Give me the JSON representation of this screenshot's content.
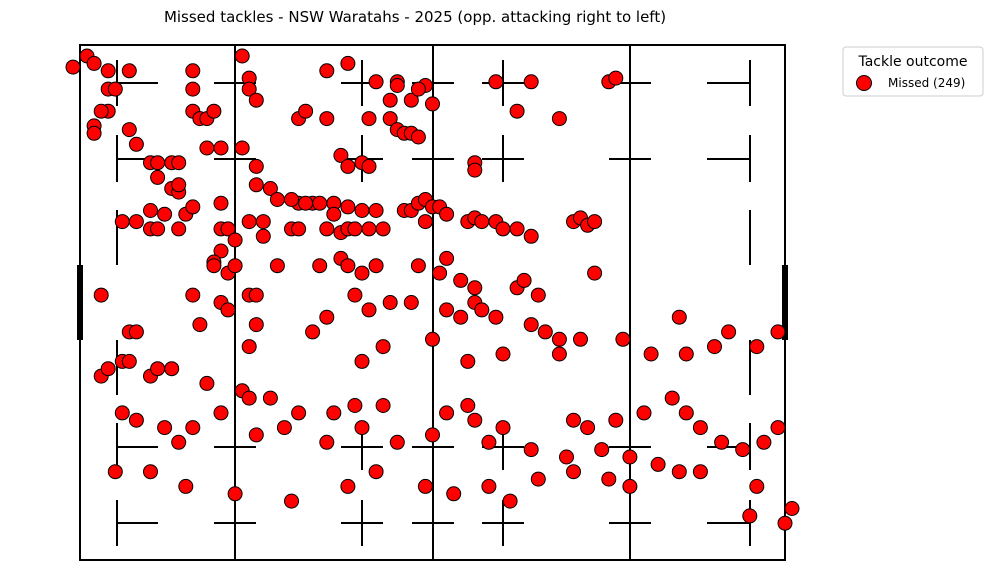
{
  "chart_data": {
    "type": "scatter",
    "title": "Missed tackles - NSW Waratahs - 2025  (opp. attacking right to left)",
    "xlim": [
      0,
      100
    ],
    "ylim": [
      0,
      70
    ],
    "grid": false,
    "legend": {
      "title": "Tackle outcome",
      "placement": "outside-top-right",
      "entries": [
        {
          "label": "Missed (249)"
        }
      ]
    },
    "series": [
      {
        "name": "Missed (249)",
        "color": "#ff0000",
        "edge_color": "#000000",
        "points": [
          [
            -1,
            67
          ],
          [
            1,
            68.5
          ],
          [
            2,
            67.5
          ],
          [
            4,
            66.5
          ],
          [
            7,
            66.5
          ],
          [
            16,
            66.5
          ],
          [
            23,
            68.5
          ],
          [
            24,
            65.5
          ],
          [
            35,
            66.5
          ],
          [
            38,
            67.5
          ],
          [
            42,
            65
          ],
          [
            45,
            65
          ],
          [
            44,
            62.5
          ],
          [
            45,
            64.5
          ],
          [
            47,
            62.5
          ],
          [
            49,
            64.5
          ],
          [
            59,
            65
          ],
          [
            64,
            65
          ],
          [
            75,
            65
          ],
          [
            76,
            65.5
          ],
          [
            4,
            64
          ],
          [
            5,
            64
          ],
          [
            16,
            64
          ],
          [
            24,
            64
          ],
          [
            25,
            62.5
          ],
          [
            48,
            64
          ],
          [
            50,
            62
          ],
          [
            4,
            61
          ],
          [
            3,
            61
          ],
          [
            16,
            61
          ],
          [
            17,
            60
          ],
          [
            18,
            60
          ],
          [
            19,
            61
          ],
          [
            31,
            60
          ],
          [
            32,
            61
          ],
          [
            35,
            60
          ],
          [
            41,
            60
          ],
          [
            44,
            60
          ],
          [
            62,
            61
          ],
          [
            68,
            60
          ],
          [
            2,
            59
          ],
          [
            7,
            58.5
          ],
          [
            2,
            58
          ],
          [
            45,
            58.5
          ],
          [
            46,
            58
          ],
          [
            47,
            58
          ],
          [
            48,
            57.5
          ],
          [
            8,
            56.5
          ],
          [
            18,
            56
          ],
          [
            20,
            56
          ],
          [
            23,
            56
          ],
          [
            10,
            54
          ],
          [
            11,
            54
          ],
          [
            13,
            54
          ],
          [
            14,
            54
          ],
          [
            25,
            53.5
          ],
          [
            37,
            55
          ],
          [
            38,
            53.5
          ],
          [
            40,
            54
          ],
          [
            41,
            53.5
          ],
          [
            56,
            54
          ],
          [
            56,
            53
          ],
          [
            11,
            52
          ],
          [
            13,
            50.5
          ],
          [
            14,
            50
          ],
          [
            14,
            51
          ],
          [
            25,
            51
          ],
          [
            27,
            50.5
          ],
          [
            28,
            49
          ],
          [
            31,
            48.5
          ],
          [
            33,
            48.5
          ],
          [
            36,
            48.5
          ],
          [
            10,
            47.5
          ],
          [
            12,
            47
          ],
          [
            15,
            47
          ],
          [
            16,
            48
          ],
          [
            20,
            48.5
          ],
          [
            24,
            46
          ],
          [
            30,
            49
          ],
          [
            32,
            48.5
          ],
          [
            34,
            48.5
          ],
          [
            36,
            47
          ],
          [
            38,
            48
          ],
          [
            40,
            47.5
          ],
          [
            42,
            47.5
          ],
          [
            46,
            47.5
          ],
          [
            47,
            47.5
          ],
          [
            48,
            48.5
          ],
          [
            49,
            49
          ],
          [
            50,
            48
          ],
          [
            51,
            48
          ],
          [
            52,
            47
          ],
          [
            6,
            46
          ],
          [
            8,
            46
          ],
          [
            10,
            45
          ],
          [
            11,
            45
          ],
          [
            14,
            45
          ],
          [
            20,
            45
          ],
          [
            21,
            45
          ],
          [
            22,
            43.5
          ],
          [
            26,
            44
          ],
          [
            26,
            46
          ],
          [
            30,
            45
          ],
          [
            31,
            45
          ],
          [
            35,
            45
          ],
          [
            37,
            44.5
          ],
          [
            38,
            45
          ],
          [
            39,
            45
          ],
          [
            41,
            45
          ],
          [
            43,
            45
          ],
          [
            49,
            46
          ],
          [
            55,
            46
          ],
          [
            56,
            46.5
          ],
          [
            57,
            46
          ],
          [
            59,
            46
          ],
          [
            60,
            45
          ],
          [
            62,
            45
          ],
          [
            64,
            44
          ],
          [
            70,
            46
          ],
          [
            71,
            46.5
          ],
          [
            72,
            45.5
          ],
          [
            73,
            46
          ],
          [
            20,
            42
          ],
          [
            19,
            40.5
          ],
          [
            19,
            40
          ],
          [
            21,
            39
          ],
          [
            22,
            40
          ],
          [
            28,
            40
          ],
          [
            34,
            40
          ],
          [
            37,
            41
          ],
          [
            38,
            40
          ],
          [
            40,
            39
          ],
          [
            42,
            40
          ],
          [
            48,
            40
          ],
          [
            51,
            39
          ],
          [
            52,
            41
          ],
          [
            54,
            38
          ],
          [
            56,
            37
          ],
          [
            62,
            37
          ],
          [
            63,
            38
          ],
          [
            65,
            36
          ],
          [
            73,
            39
          ],
          [
            3,
            36
          ],
          [
            16,
            36
          ],
          [
            20,
            35
          ],
          [
            21,
            34
          ],
          [
            24,
            36
          ],
          [
            25,
            36
          ],
          [
            35,
            33
          ],
          [
            39,
            36
          ],
          [
            41,
            34
          ],
          [
            44,
            35
          ],
          [
            47,
            35
          ],
          [
            52,
            34
          ],
          [
            54,
            33
          ],
          [
            56,
            35
          ],
          [
            57,
            34
          ],
          [
            59,
            33
          ],
          [
            64,
            32
          ],
          [
            66,
            31
          ],
          [
            68,
            30
          ],
          [
            71,
            30
          ],
          [
            7,
            31
          ],
          [
            8,
            31
          ],
          [
            17,
            32
          ],
          [
            24,
            29
          ],
          [
            25,
            32
          ],
          [
            33,
            31
          ],
          [
            40,
            27
          ],
          [
            43,
            29
          ],
          [
            50,
            30
          ],
          [
            55,
            27
          ],
          [
            60,
            28
          ],
          [
            68,
            28
          ],
          [
            77,
            30
          ],
          [
            81,
            28
          ],
          [
            86,
            28
          ],
          [
            90,
            29
          ],
          [
            92,
            31
          ],
          [
            96,
            29
          ],
          [
            99,
            31
          ],
          [
            85,
            33
          ],
          [
            3,
            25
          ],
          [
            4,
            26
          ],
          [
            6,
            27
          ],
          [
            7,
            27
          ],
          [
            10,
            25
          ],
          [
            11,
            26
          ],
          [
            13,
            26
          ],
          [
            18,
            24
          ],
          [
            23,
            23
          ],
          [
            24,
            22
          ],
          [
            27,
            22
          ],
          [
            31,
            20
          ],
          [
            36,
            20
          ],
          [
            39,
            21
          ],
          [
            43,
            21
          ],
          [
            52,
            20
          ],
          [
            55,
            21
          ],
          [
            56,
            19
          ],
          [
            60,
            18
          ],
          [
            70,
            19
          ],
          [
            72,
            18
          ],
          [
            76,
            19
          ],
          [
            80,
            20
          ],
          [
            84,
            22
          ],
          [
            86,
            20
          ],
          [
            88,
            18
          ],
          [
            91,
            16
          ],
          [
            94,
            15
          ],
          [
            97,
            16
          ],
          [
            99,
            18
          ],
          [
            6,
            20
          ],
          [
            8,
            19
          ],
          [
            12,
            18
          ],
          [
            14,
            16
          ],
          [
            16,
            18
          ],
          [
            20,
            20
          ],
          [
            25,
            17
          ],
          [
            29,
            18
          ],
          [
            35,
            16
          ],
          [
            40,
            18
          ],
          [
            45,
            16
          ],
          [
            50,
            17
          ],
          [
            58,
            16
          ],
          [
            64,
            15
          ],
          [
            69,
            14
          ],
          [
            74,
            15
          ],
          [
            78,
            14
          ],
          [
            82,
            13
          ],
          [
            88,
            12
          ],
          [
            96,
            10
          ],
          [
            5,
            12
          ],
          [
            10,
            12
          ],
          [
            15,
            10
          ],
          [
            22,
            9
          ],
          [
            30,
            8
          ],
          [
            38,
            10
          ],
          [
            42,
            12
          ],
          [
            49,
            10
          ],
          [
            53,
            9
          ],
          [
            58,
            10
          ],
          [
            61,
            8
          ],
          [
            65,
            11
          ],
          [
            70,
            12
          ],
          [
            75,
            11
          ],
          [
            78,
            10
          ],
          [
            85,
            12
          ],
          [
            95,
            6
          ],
          [
            100,
            5
          ],
          [
            101,
            7
          ]
        ]
      }
    ]
  }
}
